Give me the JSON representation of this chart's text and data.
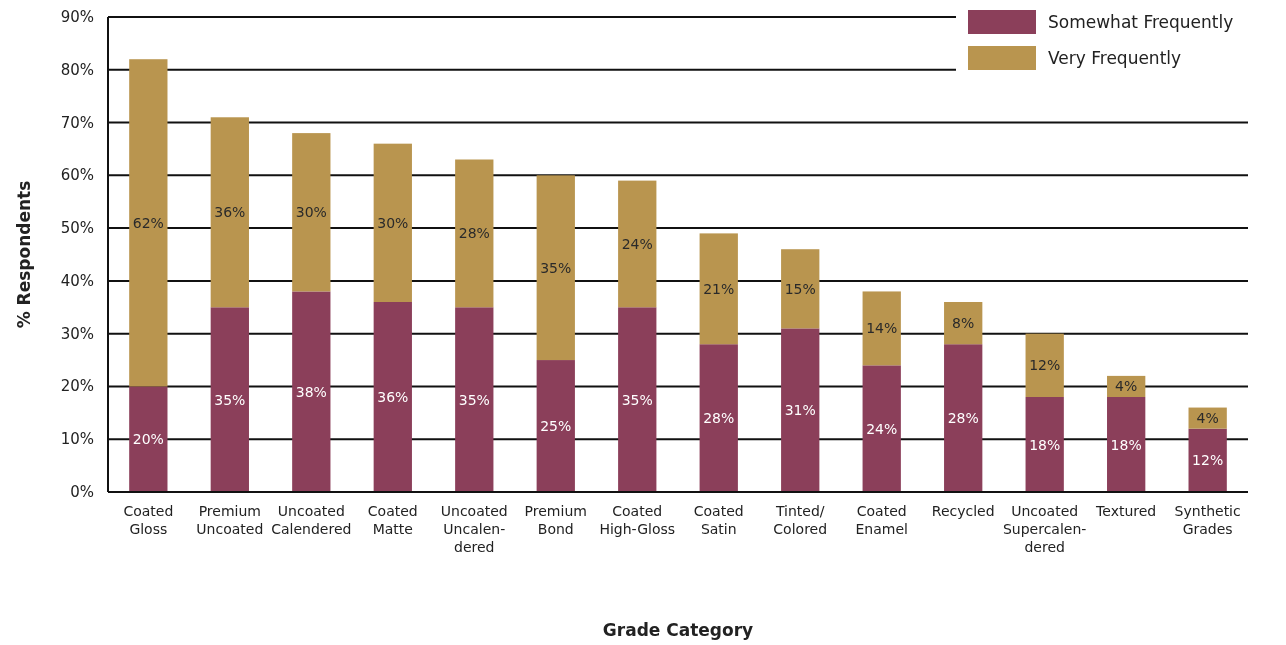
{
  "chart_data": {
    "type": "bar",
    "stacked": true,
    "xlabel": "Grade Category",
    "ylabel": "% Respondents",
    "categories": [
      "Coated\nGloss",
      "Premium\nUncoated",
      "Uncoated\nCalendered",
      "Coated\nMatte",
      "Uncoated\nUncalen-\ndered",
      "Premium\nBond",
      "Coated\nHigh-Gloss",
      "Coated\nSatin",
      "Tinted/\nColored",
      "Coated\nEnamel",
      "Recycled",
      "Uncoated\nSupercalen-\ndered",
      "Textured",
      "Synthetic\nGrades"
    ],
    "series": [
      {
        "name": "Somewhat Frequently",
        "color": "#8b3f5a",
        "values": [
          20,
          35,
          38,
          36,
          35,
          25,
          35,
          28,
          31,
          24,
          28,
          18,
          18,
          12
        ],
        "value_labels": [
          "20%",
          "35%",
          "38%",
          "36%",
          "35%",
          "25%",
          "35%",
          "28%",
          "31%",
          "24%",
          "28%",
          "18%",
          "18%",
          "12%"
        ]
      },
      {
        "name": "Very Frequently",
        "color": "#b9954f",
        "values": [
          62,
          36,
          30,
          30,
          28,
          35,
          24,
          21,
          15,
          14,
          8,
          12,
          4,
          4
        ],
        "value_labels": [
          "62%",
          "36%",
          "30%",
          "30%",
          "28%",
          "35%",
          "24%",
          "21%",
          "15%",
          "14%",
          "8%",
          "12%",
          "4%",
          "4%"
        ]
      }
    ],
    "ylim": [
      0,
      90
    ],
    "yticks": [
      {
        "value": 0,
        "label": "0%"
      },
      {
        "value": 10,
        "label": "10%"
      },
      {
        "value": 20,
        "label": "20%"
      },
      {
        "value": 30,
        "label": "30%"
      },
      {
        "value": 40,
        "label": "40%"
      },
      {
        "value": 50,
        "label": "50%"
      },
      {
        "value": 60,
        "label": "60%"
      },
      {
        "value": 70,
        "label": "70%"
      },
      {
        "value": 80,
        "label": "80%"
      },
      {
        "value": 90,
        "label": "90%"
      }
    ],
    "grid": "y",
    "legend": "top right"
  }
}
